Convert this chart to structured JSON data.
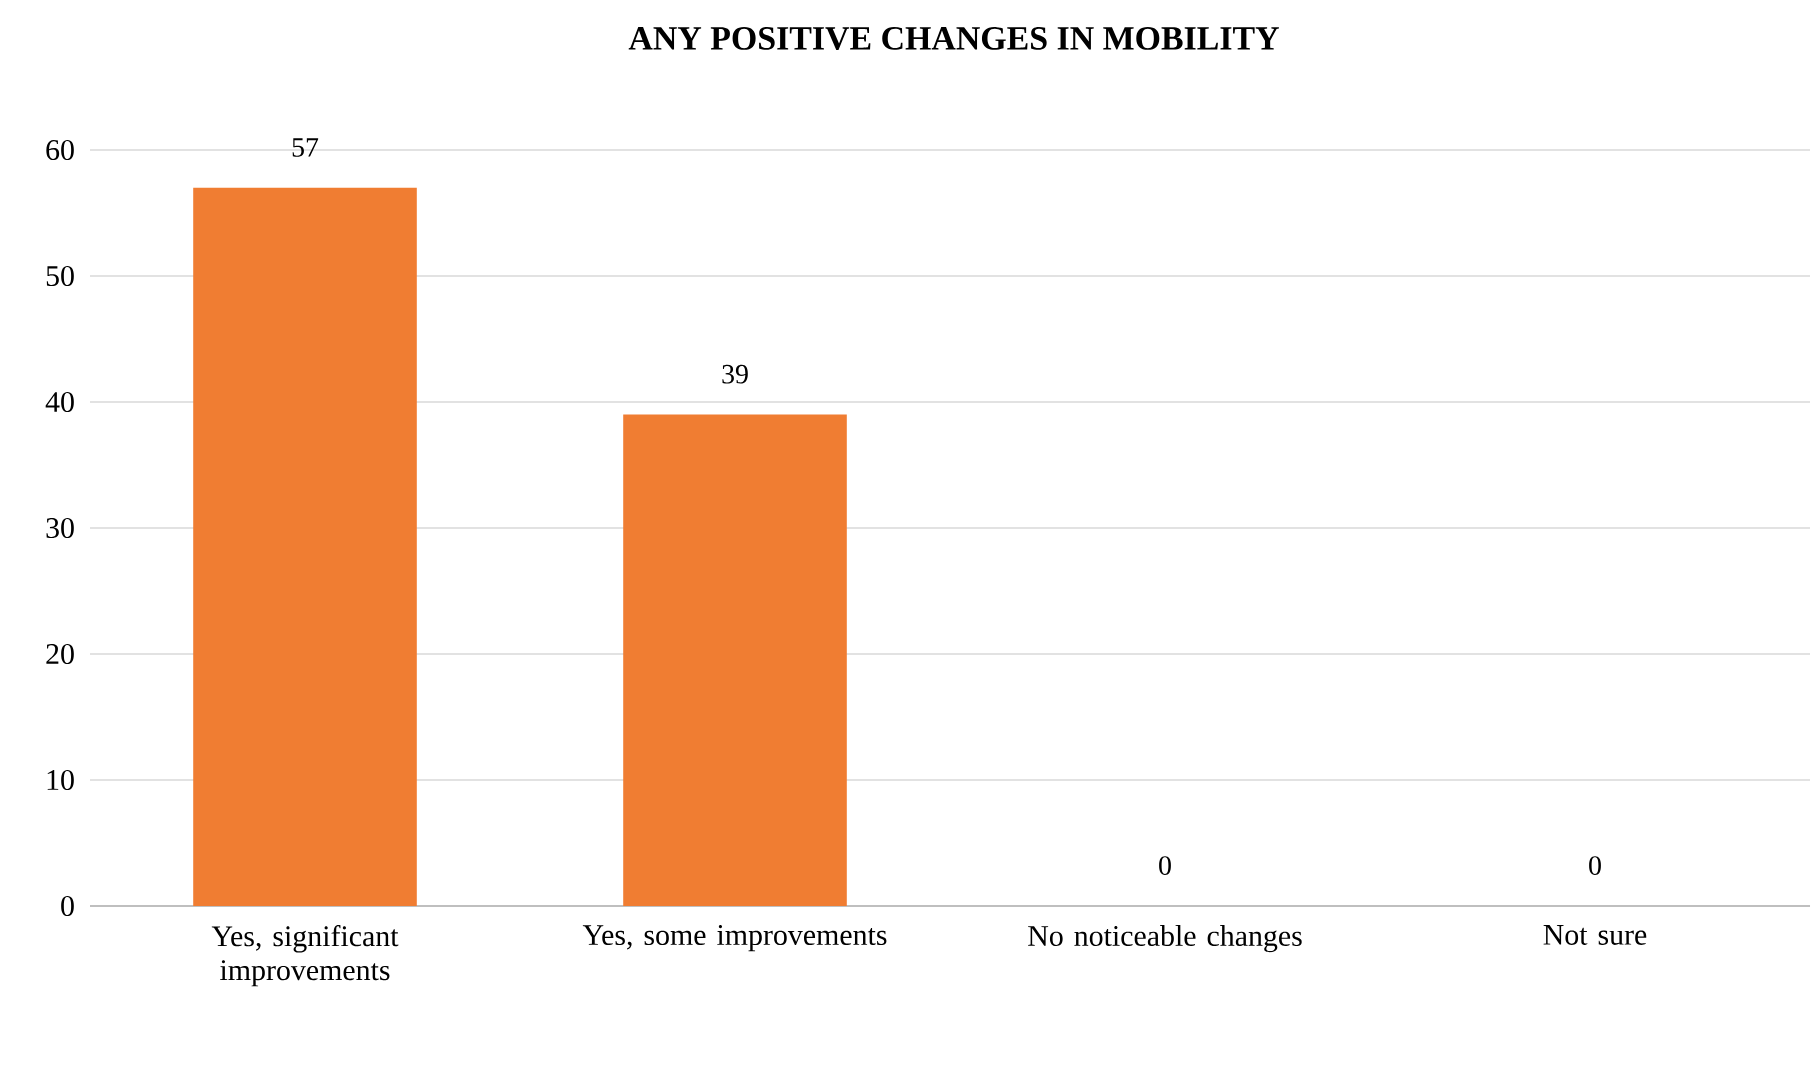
{
  "chart_data": {
    "type": "bar",
    "title": "ANY POSITIVE CHANGES IN MOBILITY",
    "categories": [
      "Yes, significant improvements",
      "Yes, some improvements",
      "No noticeable changes",
      "Not sure"
    ],
    "values": [
      57,
      39,
      0,
      0
    ],
    "color": "#f07d32",
    "ylim": [
      0,
      60
    ],
    "yticks": [
      0,
      10,
      20,
      30,
      40,
      50,
      60
    ],
    "grid": "y",
    "data_labels": true
  }
}
